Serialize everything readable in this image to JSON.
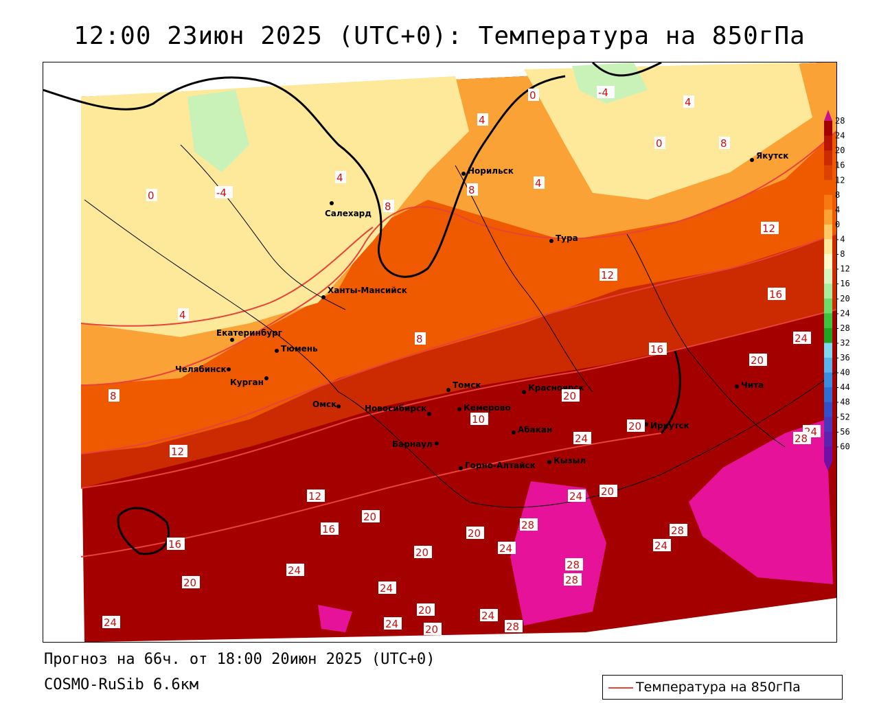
{
  "title": "12:00 23июн 2025 (UTC+0): Температура на 850гПа",
  "footer": {
    "forecast": "Прогноз на 66ч. от 18:00 20июн 2025 (UTC+0)",
    "model": "COSMO-RuSib 6.6км"
  },
  "legend": {
    "label": "Температура на 850гПа",
    "line_color": "#e8423a"
  },
  "colorbar": {
    "ticks": [
      "28",
      "24",
      "20",
      "16",
      "12",
      "8",
      "4",
      "0",
      "-4",
      "-8",
      "-12",
      "-16",
      "-20",
      "-24",
      "-28",
      "-32",
      "-36",
      "-40",
      "-44",
      "-48",
      "-52",
      "-56",
      "-60"
    ],
    "colors": [
      "#a50000",
      "#b81400",
      "#cc2a00",
      "#de4200",
      "#ef5a00",
      "#f77a10",
      "#fba236",
      "#fdc866",
      "#fee89a",
      "#fff9cc",
      "#d6f7c4",
      "#a8eea0",
      "#6fdc6a",
      "#3cc43c",
      "#1fa51f",
      "#7dd8f0",
      "#5ab4ec",
      "#3a8ee0",
      "#2f6fd4",
      "#3450c8",
      "#4a38bc",
      "#5e22b0",
      "#7010a4"
    ]
  },
  "cities": [
    {
      "name": "Норильск"
    },
    {
      "name": "Якутск"
    },
    {
      "name": "Салехард"
    },
    {
      "name": "Тура"
    },
    {
      "name": "Ханты-Мансийск"
    },
    {
      "name": "Екатеринбург"
    },
    {
      "name": "Тюмень"
    },
    {
      "name": "Челябинск"
    },
    {
      "name": "Курган"
    },
    {
      "name": "Омск"
    },
    {
      "name": "Новосибирск"
    },
    {
      "name": "Томск"
    },
    {
      "name": "Красноярск"
    },
    {
      "name": "Кемерово"
    },
    {
      "name": "Абакан"
    },
    {
      "name": "Иркутск"
    },
    {
      "name": "Барнаул"
    },
    {
      "name": "Горно-Алтайск"
    },
    {
      "name": "Кызыл"
    },
    {
      "name": "Чита"
    }
  ],
  "contour_labels": [
    "0",
    "-4",
    "4",
    "8",
    "-4",
    "0",
    "4",
    "8",
    "4",
    "0",
    "4",
    "8",
    "12",
    "12",
    "16",
    "4",
    "8",
    "8",
    "16",
    "20",
    "24",
    "12",
    "20",
    "16",
    "12",
    "20",
    "10",
    "20",
    "24",
    "24",
    "28",
    "20",
    "24",
    "16",
    "20",
    "28",
    "24",
    "24",
    "20",
    "24",
    "28",
    "24",
    "20",
    "28",
    "20",
    "24",
    "24",
    "20",
    "24",
    "28",
    "28"
  ]
}
